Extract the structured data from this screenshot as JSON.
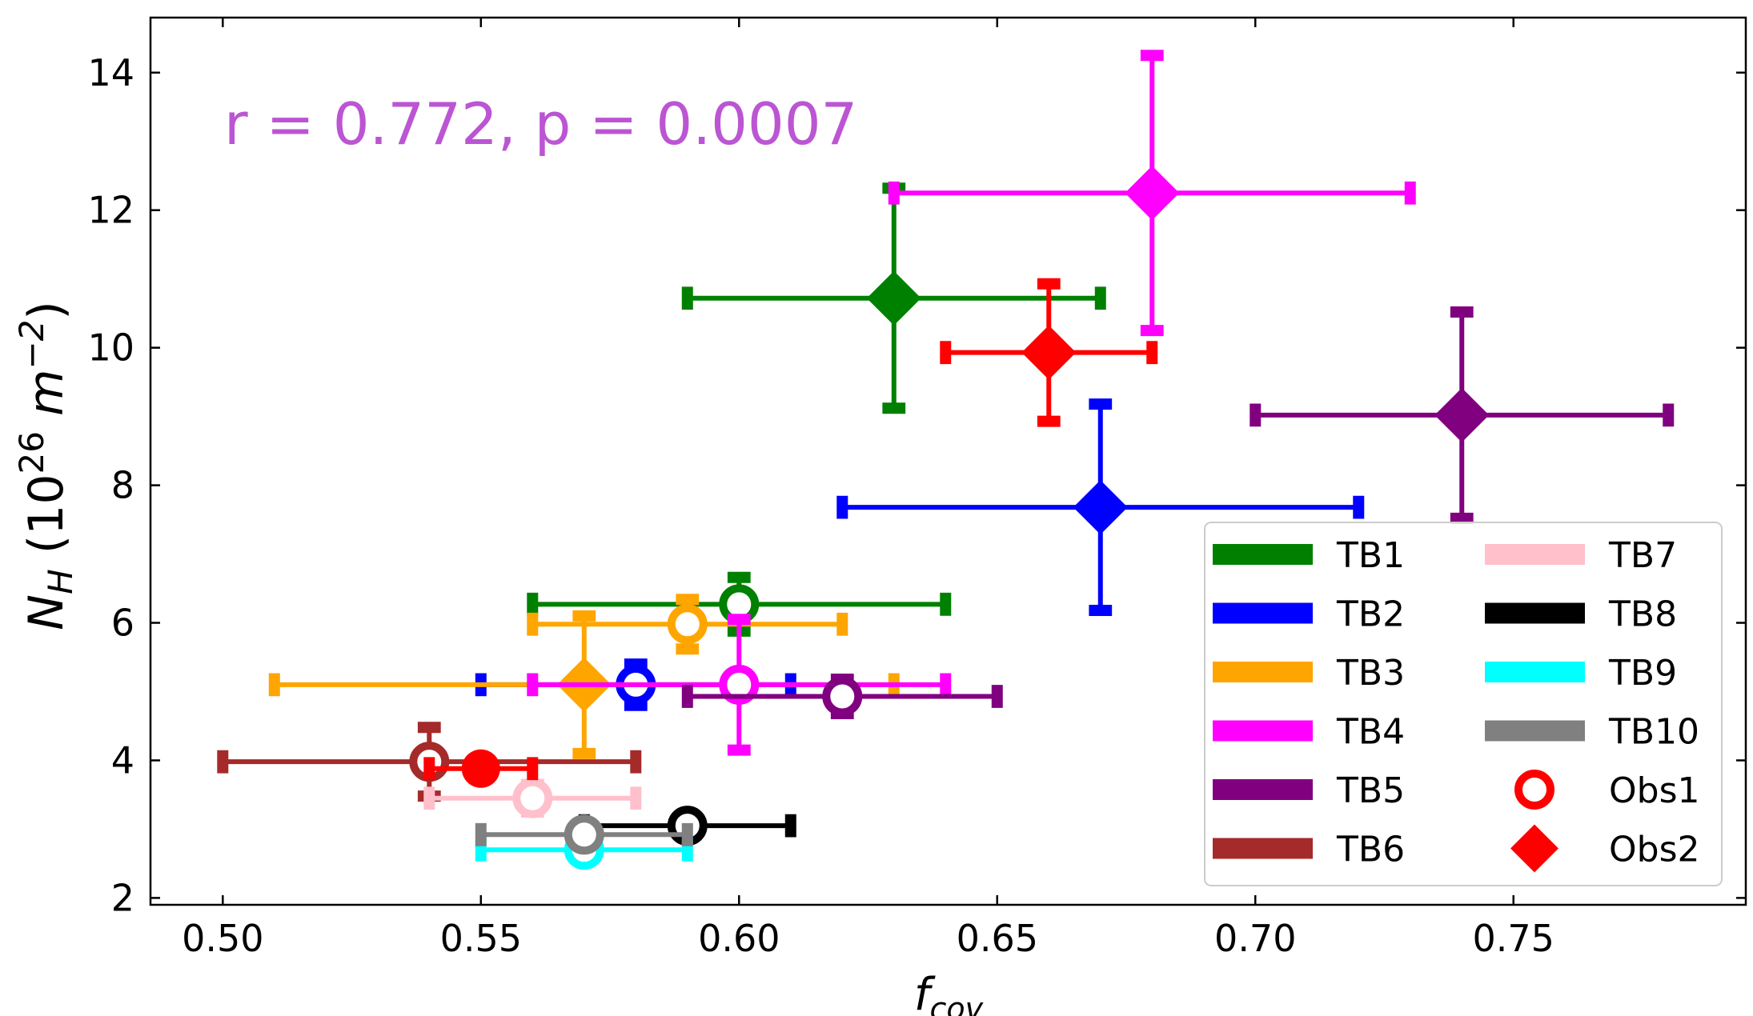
{
  "chart_data": {
    "type": "scatter",
    "title": "",
    "xlabel": {
      "main": "f",
      "sub": "cov"
    },
    "ylabel": {
      "main": "N",
      "sub": "H",
      "rest_open": " (10",
      "exp": "26",
      "unit": " m",
      "unit_exp": "−2",
      "close": ")"
    },
    "xlim": [
      0.486,
      0.795
    ],
    "ylim": [
      1.9,
      14.8
    ],
    "xticks": [
      0.5,
      0.55,
      0.6,
      0.65,
      0.7,
      0.75
    ],
    "xtick_labels": [
      "0.50",
      "0.55",
      "0.60",
      "0.65",
      "0.70",
      "0.75"
    ],
    "yticks": [
      2,
      4,
      6,
      8,
      10,
      12,
      14
    ],
    "ytick_labels": [
      "2",
      "4",
      "6",
      "8",
      "10",
      "12",
      "14"
    ],
    "grid": false,
    "annotation": {
      "text": "r = 0.772, p = 0.0007",
      "color": "#bb55d3"
    },
    "legend_position": "lower-right",
    "series": [
      {
        "name": "TB1",
        "color": "#008000",
        "points": [
          {
            "obs": "Obs1",
            "x": 0.6,
            "y": 6.27,
            "xerr": [
              0.56,
              0.64
            ],
            "yerr": [
              5.88,
              6.66
            ]
          },
          {
            "obs": "Obs2",
            "x": 0.63,
            "y": 10.72,
            "xerr": [
              0.59,
              0.67
            ],
            "yerr": [
              9.12,
              12.32
            ]
          }
        ]
      },
      {
        "name": "TB2",
        "color": "#0000ff",
        "points": [
          {
            "obs": "Obs1",
            "x": 0.58,
            "y": 5.1,
            "xerr": [
              0.55,
              0.61
            ],
            "yerr": [
              4.8,
              5.4
            ]
          },
          {
            "obs": "Obs2",
            "x": 0.67,
            "y": 7.68,
            "xerr": [
              0.62,
              0.72
            ],
            "yerr": [
              6.18,
              9.18
            ]
          }
        ]
      },
      {
        "name": "TB3",
        "color": "#ffa500",
        "points": [
          {
            "obs": "Obs1",
            "x": 0.59,
            "y": 5.98,
            "xerr": [
              0.56,
              0.62
            ],
            "yerr": [
              5.62,
              6.34
            ]
          },
          {
            "obs": "Obs2",
            "x": 0.57,
            "y": 5.1,
            "xerr": [
              0.51,
              0.63
            ],
            "yerr": [
              4.1,
              6.1
            ]
          }
        ]
      },
      {
        "name": "TB4",
        "color": "#ff00ff",
        "points": [
          {
            "obs": "Obs1",
            "x": 0.6,
            "y": 5.1,
            "xerr": [
              0.56,
              0.64
            ],
            "yerr": [
              4.15,
              6.05
            ]
          },
          {
            "obs": "Obs2",
            "x": 0.68,
            "y": 12.25,
            "xerr": [
              0.63,
              0.73
            ],
            "yerr": [
              10.25,
              14.25
            ]
          }
        ]
      },
      {
        "name": "TB5",
        "color": "#800080",
        "points": [
          {
            "obs": "Obs1",
            "x": 0.62,
            "y": 4.93,
            "xerr": [
              0.59,
              0.65
            ],
            "yerr": [
              4.68,
              5.18
            ]
          },
          {
            "obs": "Obs2",
            "x": 0.74,
            "y": 9.02,
            "xerr": [
              0.7,
              0.78
            ],
            "yerr": [
              7.52,
              10.52
            ]
          }
        ]
      },
      {
        "name": "TB6",
        "color": "#a52a2a",
        "points": [
          {
            "obs": "Obs1",
            "x": 0.54,
            "y": 3.98,
            "xerr": [
              0.5,
              0.58
            ],
            "yerr": [
              3.48,
              4.48
            ]
          }
        ]
      },
      {
        "name": "TB7",
        "color": "#ffc0cb",
        "points": [
          {
            "obs": "Obs1",
            "x": 0.56,
            "y": 3.45,
            "xerr": [
              0.54,
              0.58
            ],
            "yerr": [
              3.25,
              3.65
            ]
          }
        ]
      },
      {
        "name": "TB8",
        "color": "#000000",
        "points": [
          {
            "obs": "Obs1",
            "x": 0.59,
            "y": 3.05,
            "xerr": [
              0.57,
              0.61
            ],
            "yerr": [
              2.9,
              3.2
            ]
          }
        ]
      },
      {
        "name": "TB9",
        "color": "#00ffff",
        "points": [
          {
            "obs": "Obs1",
            "x": 0.57,
            "y": 2.7,
            "xerr": [
              0.55,
              0.59
            ],
            "yerr": [
              2.6,
              2.8
            ]
          }
        ]
      },
      {
        "name": "TB10",
        "color": "#808080",
        "points": [
          {
            "obs": "Obs1",
            "x": 0.57,
            "y": 2.92,
            "xerr": [
              0.55,
              0.59
            ],
            "yerr": [
              2.8,
              3.04
            ]
          }
        ]
      }
    ],
    "extra_points": [
      {
        "label": "Obs1 (red)",
        "color": "#ff0000",
        "marker": "circle-filled",
        "x": 0.55,
        "y": 3.88,
        "xerr": [
          0.54,
          0.56
        ],
        "yerr": [
          3.78,
          3.98
        ]
      },
      {
        "label": "Obs2 (red)",
        "color": "#ff0000",
        "marker": "diamond",
        "x": 0.66,
        "y": 9.93,
        "xerr": [
          0.64,
          0.68
        ],
        "yerr": [
          8.93,
          10.93
        ]
      }
    ],
    "legend": {
      "entries": [
        {
          "label": "TB1",
          "kind": "line",
          "color": "#008000"
        },
        {
          "label": "TB2",
          "kind": "line",
          "color": "#0000ff"
        },
        {
          "label": "TB3",
          "kind": "line",
          "color": "#ffa500"
        },
        {
          "label": "TB4",
          "kind": "line",
          "color": "#ff00ff"
        },
        {
          "label": "TB5",
          "kind": "line",
          "color": "#800080"
        },
        {
          "label": "TB6",
          "kind": "line",
          "color": "#a52a2a"
        },
        {
          "label": "TB7",
          "kind": "line",
          "color": "#ffc0cb"
        },
        {
          "label": "TB8",
          "kind": "line",
          "color": "#000000"
        },
        {
          "label": "TB9",
          "kind": "line",
          "color": "#00ffff"
        },
        {
          "label": "TB10",
          "kind": "line",
          "color": "#808080"
        },
        {
          "label": "Obs1",
          "kind": "circle",
          "color": "#ff0000"
        },
        {
          "label": "Obs2",
          "kind": "diamond",
          "color": "#ff0000"
        }
      ]
    }
  }
}
